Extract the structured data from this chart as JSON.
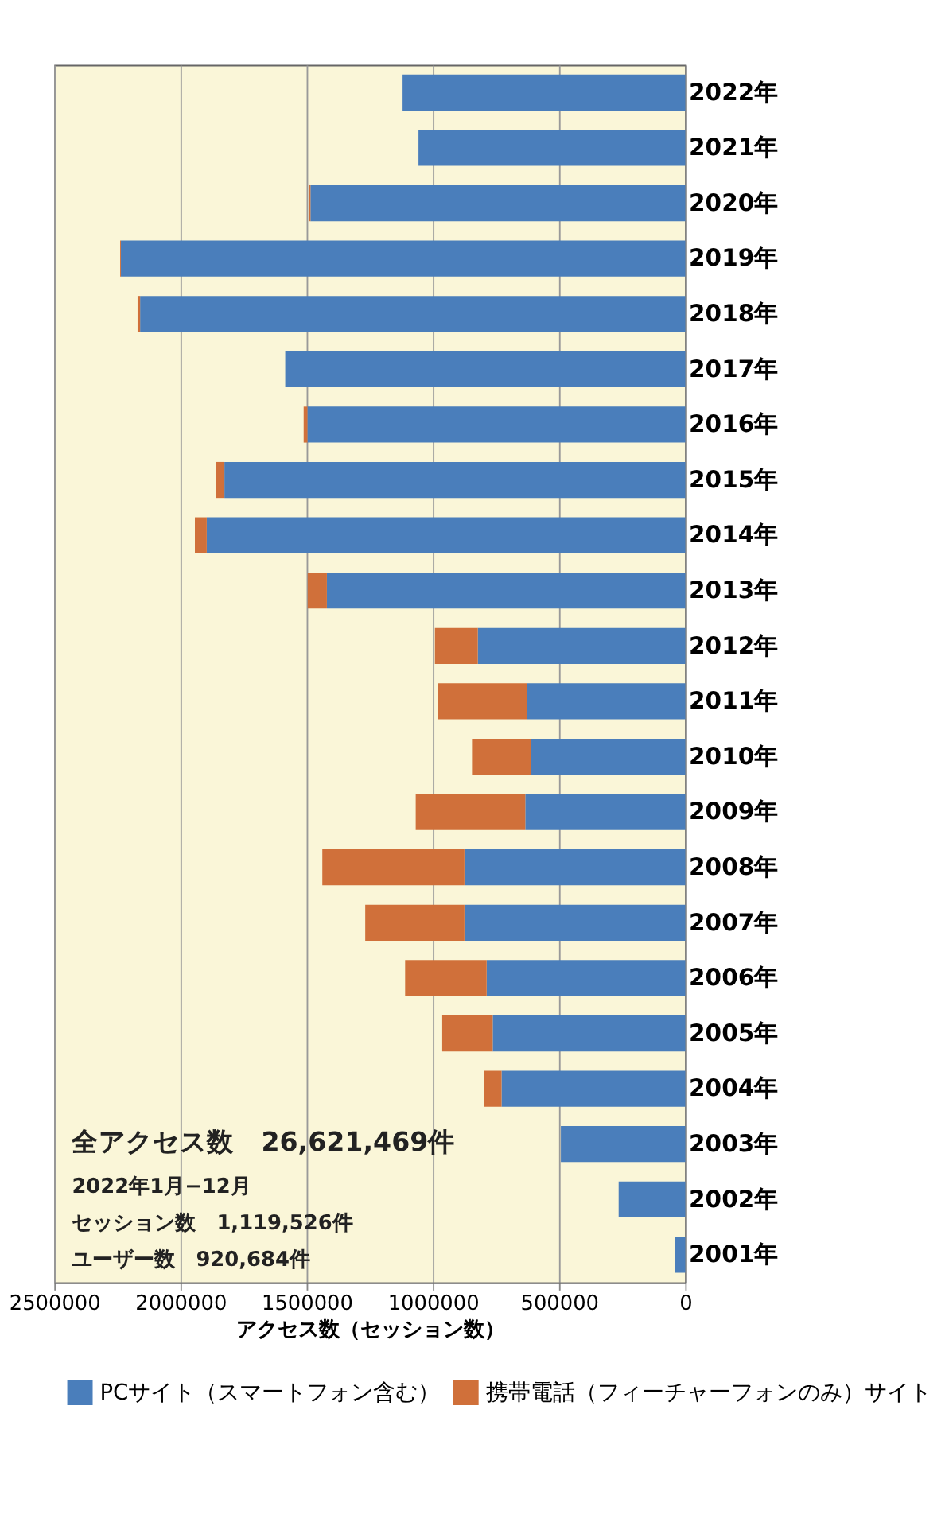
{
  "chart_data": {
    "type": "bar",
    "orientation": "horizontal",
    "stacked": true,
    "categories": [
      "2022年",
      "2021年",
      "2020年",
      "2019年",
      "2018年",
      "2017年",
      "2016年",
      "2015年",
      "2014年",
      "2013年",
      "2012年",
      "2011年",
      "2010年",
      "2009年",
      "2008年",
      "2007年",
      "2006年",
      "2005年",
      "2004年",
      "2003年",
      "2002年",
      "2001年"
    ],
    "series": [
      {
        "name": "PCサイト（スマートフォン含む）",
        "color": "#4a7ebb",
        "values": [
          1120000,
          1057000,
          1485000,
          2236000,
          2160000,
          1585000,
          1497000,
          1826000,
          1896000,
          1420000,
          822000,
          628000,
          610000,
          634000,
          875000,
          875000,
          787000,
          763000,
          728000,
          493000,
          264000,
          41000
        ]
      },
      {
        "name": "携帯電話（フィーチャーフォンのみ）サイト",
        "color": "#d0703a",
        "values": [
          0,
          0,
          5000,
          3000,
          10000,
          0,
          15000,
          35000,
          47000,
          76000,
          170000,
          352000,
          235000,
          434000,
          563000,
          393000,
          323000,
          200000,
          70000,
          0,
          0,
          0
        ]
      }
    ],
    "xlim": [
      2500000,
      0
    ],
    "xticks": [
      2500000,
      2000000,
      1500000,
      1000000,
      500000,
      0
    ],
    "xlabel": "アクセス数（セッション数）",
    "grid": "x",
    "legend": "bottom",
    "annotations": [
      "全アクセス数　26,621,469件",
      "2022年1月−12月",
      "セッション数　1,119,526件",
      "ユーザー数　920,684件"
    ]
  }
}
